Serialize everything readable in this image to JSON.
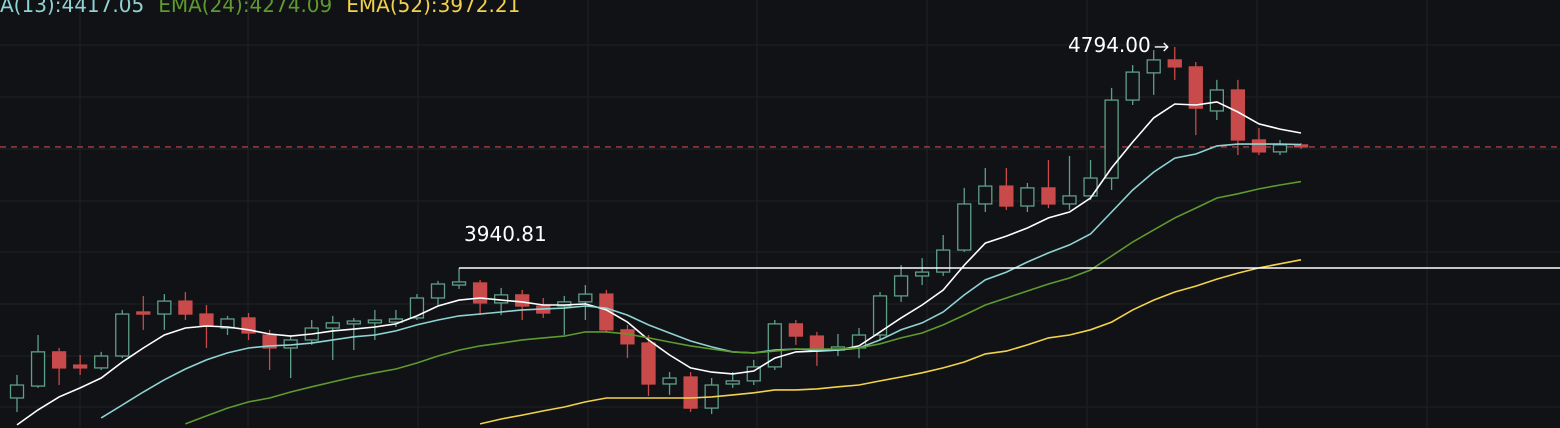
{
  "chart_data": {
    "type": "candlestick",
    "ylim": [
      3323.1,
      4975.3
    ],
    "up_color": "#5f9f86",
    "down_color": "#c84a4a",
    "open": [
      3439,
      3485,
      3617,
      3566,
      3555,
      3601,
      3771,
      3763,
      3813,
      3763,
      3709,
      3748,
      3682,
      3632,
      3663,
      3709,
      3725,
      3729,
      3732,
      3748,
      3825,
      3875,
      3883,
      3806,
      3837,
      3794,
      3794,
      3810,
      3840,
      3702,
      3651,
      3493,
      3520,
      3400,
      3493,
      3505,
      3559,
      3725,
      3678,
      3624,
      3632,
      3682,
      3833,
      3910,
      3925,
      4010,
      4188,
      4257,
      4180,
      4250,
      4188,
      4219,
      4288,
      4589,
      4694,
      4744,
      4717,
      4547,
      4628,
      4435,
      4389,
      4416
    ],
    "high": [
      3528,
      3682,
      3632,
      3605,
      3617,
      3779,
      3833,
      3840,
      3848,
      3798,
      3756,
      3767,
      3702,
      3682,
      3740,
      3756,
      3748,
      3779,
      3779,
      3840,
      3891,
      3940.81,
      3895,
      3864,
      3856,
      3825,
      3833,
      3875,
      3856,
      3721,
      3682,
      3539,
      3539,
      3516,
      3539,
      3586,
      3740,
      3740,
      3694,
      3686,
      3709,
      3848,
      3952,
      3979,
      4068,
      4250,
      4327,
      4327,
      4269,
      4358,
      4373,
      4358,
      4636,
      4724,
      4782,
      4794,
      4736,
      4667,
      4667,
      4481,
      4435,
      4423
    ],
    "low": [
      3385,
      3478,
      3489,
      3528,
      3547,
      3593,
      3702,
      3702,
      3740,
      3632,
      3682,
      3663,
      3547,
      3516,
      3644,
      3586,
      3624,
      3663,
      3713,
      3740,
      3798,
      3860,
      3759,
      3759,
      3740,
      3748,
      3682,
      3740,
      3690,
      3593,
      3447,
      3451,
      3385,
      3377,
      3478,
      3489,
      3547,
      3644,
      3563,
      3601,
      3593,
      3663,
      3810,
      3875,
      3910,
      4003,
      4157,
      4165,
      4157,
      4172,
      4165,
      4203,
      4242,
      4570,
      4609,
      4667,
      4454,
      4512,
      4377,
      4377,
      4377,
      4400
    ],
    "close": [
      3489,
      3617,
      3555,
      3555,
      3601,
      3763,
      3763,
      3813,
      3763,
      3717,
      3744,
      3690,
      3632,
      3663,
      3709,
      3729,
      3736,
      3740,
      3744,
      3825,
      3879,
      3887,
      3806,
      3837,
      3794,
      3767,
      3810,
      3840,
      3702,
      3648,
      3493,
      3516,
      3400,
      3489,
      3505,
      3559,
      3725,
      3678,
      3624,
      3636,
      3682,
      3833,
      3910,
      3925,
      4010,
      4188,
      4257,
      4180,
      4250,
      4188,
      4219,
      4288,
      4589,
      4697,
      4744,
      4717,
      4558,
      4628,
      4435,
      4389,
      4416,
      4408
    ],
    "series": [
      {
        "color": "#ffffff",
        "values": [
          3335,
          3393,
          3443,
          3478,
          3516,
          3578,
          3632,
          3682,
          3709,
          3717,
          3713,
          3702,
          3686,
          3678,
          3686,
          3698,
          3705,
          3713,
          3725,
          3756,
          3794,
          3817,
          3825,
          3817,
          3810,
          3798,
          3798,
          3802,
          3779,
          3732,
          3663,
          3605,
          3555,
          3539,
          3532,
          3543,
          3593,
          3617,
          3620,
          3624,
          3640,
          3694,
          3748,
          3798,
          3856,
          3952,
          4037,
          4064,
          4095,
          4134,
          4157,
          4211,
          4327,
          4427,
          4520,
          4574,
          4570,
          4582,
          4543,
          4497,
          4477,
          4462
        ]
      },
      {
        "name": "A(13):4417.05",
        "color": "#8fd3d3",
        "values": [
          null,
          null,
          null,
          null,
          3362,
          3412,
          3462,
          3509,
          3551,
          3586,
          3613,
          3632,
          3640,
          3644,
          3651,
          3663,
          3675,
          3682,
          3698,
          3721,
          3740,
          3756,
          3763,
          3771,
          3779,
          3783,
          3786,
          3794,
          3786,
          3759,
          3721,
          3690,
          3659,
          3636,
          3617,
          3613,
          3624,
          3628,
          3624,
          3624,
          3632,
          3663,
          3702,
          3729,
          3771,
          3837,
          3895,
          3925,
          3964,
          3999,
          4030,
          4072,
          4157,
          4242,
          4311,
          4365,
          4381,
          4412,
          4419,
          4419,
          4419,
          4417.05
        ]
      },
      {
        "name": "EMA(24):4274.09",
        "color": "#5e9a2e",
        "values": [
          null,
          null,
          null,
          null,
          null,
          null,
          null,
          null,
          3339,
          3370,
          3400,
          3424,
          3439,
          3462,
          3482,
          3501,
          3520,
          3536,
          3551,
          3574,
          3601,
          3624,
          3640,
          3651,
          3663,
          3671,
          3678,
          3694,
          3694,
          3686,
          3671,
          3655,
          3640,
          3628,
          3617,
          3613,
          3620,
          3628,
          3628,
          3628,
          3632,
          3648,
          3671,
          3690,
          3721,
          3759,
          3798,
          3825,
          3852,
          3879,
          3902,
          3933,
          3987,
          4041,
          4088,
          4134,
          4172,
          4211,
          4227,
          4246,
          4261,
          4274.09
        ]
      },
      {
        "name": "EMA(52):3972.21",
        "color": "#f2d24b",
        "values": [
          null,
          null,
          null,
          null,
          null,
          null,
          null,
          null,
          null,
          null,
          null,
          null,
          null,
          null,
          null,
          null,
          null,
          null,
          null,
          null,
          null,
          null,
          3339,
          3358,
          3373,
          3389,
          3404,
          3424,
          3439,
          3439,
          3439,
          3439,
          3439,
          3443,
          3451,
          3459,
          3470,
          3470,
          3474,
          3482,
          3489,
          3505,
          3520,
          3536,
          3555,
          3578,
          3609,
          3620,
          3644,
          3671,
          3682,
          3702,
          3732,
          3779,
          3817,
          3848,
          3871,
          3898,
          3921,
          3941,
          3957,
          3972.21
        ]
      }
    ],
    "annotations": [
      {
        "text": 3940.81,
        "value": 3940.81,
        "index": 21
      },
      {
        "text": "4794.00",
        "value": 4794,
        "index": 55
      }
    ]
  }
}
